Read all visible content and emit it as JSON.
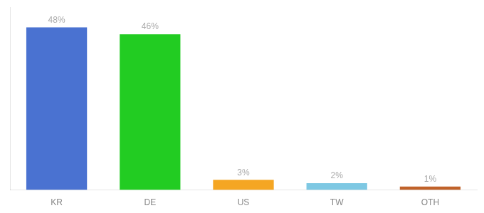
{
  "chart_data": {
    "type": "bar",
    "categories": [
      "KR",
      "DE",
      "US",
      "TW",
      "OTH"
    ],
    "values": [
      48,
      46,
      3,
      2,
      1
    ],
    "value_labels": [
      "48%",
      "46%",
      "3%",
      "2%",
      "1%"
    ],
    "colors": [
      "#4a72d1",
      "#22cc22",
      "#f5a623",
      "#7ec8e3",
      "#c0622a"
    ],
    "ylim": [
      0,
      54
    ],
    "grid": false,
    "data_labels": true,
    "tick_labels": "x"
  }
}
